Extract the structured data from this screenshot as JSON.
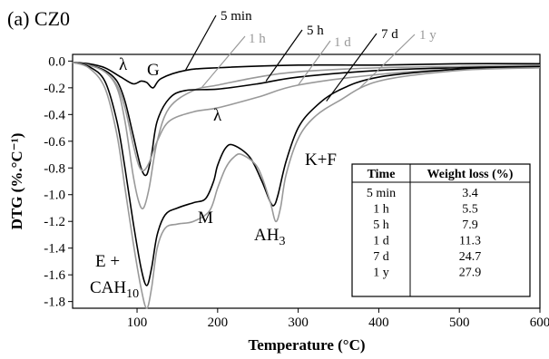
{
  "chart_data": {
    "type": "line",
    "title": "(a) CZ0",
    "xlabel": "Temperature (°C)",
    "ylabel": "DTG (%.°C⁻¹)",
    "xlim": [
      20,
      600
    ],
    "ylim": [
      -1.85,
      0.05
    ],
    "x_ticks": [
      "100",
      "200",
      "300",
      "400",
      "500",
      "600"
    ],
    "y_ticks": [
      "0.0",
      "-0.2",
      "-0.4",
      "-0.6",
      "-0.8",
      "-1.0",
      "-1.2",
      "-1.4",
      "-1.6",
      "-1.8"
    ],
    "grid": false,
    "series": [
      {
        "name": "5 min",
        "color": "#000000",
        "x": [
          20,
          40,
          60,
          80,
          95,
          105,
          112,
          120,
          130,
          160,
          200,
          300,
          400,
          500,
          600
        ],
        "y": [
          -0.01,
          -0.02,
          -0.05,
          -0.12,
          -0.17,
          -0.15,
          -0.16,
          -0.2,
          -0.13,
          -0.07,
          -0.05,
          -0.03,
          -0.03,
          -0.02,
          -0.02
        ]
      },
      {
        "name": "1 h",
        "color": "#999999",
        "x": [
          20,
          40,
          60,
          75,
          85,
          95,
          102,
          108,
          115,
          125,
          140,
          170,
          200,
          250,
          300,
          400,
          500,
          600
        ],
        "y": [
          -0.01,
          -0.03,
          -0.08,
          -0.2,
          -0.45,
          -0.85,
          -1.05,
          -1.1,
          -0.95,
          -0.6,
          -0.35,
          -0.22,
          -0.18,
          -0.12,
          -0.08,
          -0.05,
          -0.04,
          -0.03
        ]
      },
      {
        "name": "5 h",
        "color": "#000000",
        "x": [
          20,
          40,
          60,
          75,
          85,
          95,
          105,
          112,
          118,
          125,
          140,
          160,
          200,
          250,
          300,
          400,
          500,
          600
        ],
        "y": [
          -0.01,
          -0.03,
          -0.07,
          -0.15,
          -0.3,
          -0.55,
          -0.8,
          -0.85,
          -0.7,
          -0.45,
          -0.28,
          -0.22,
          -0.21,
          -0.17,
          -0.12,
          -0.07,
          -0.05,
          -0.04
        ]
      },
      {
        "name": "1 d",
        "color": "#999999",
        "x": [
          20,
          40,
          60,
          75,
          85,
          95,
          102,
          108,
          115,
          125,
          140,
          170,
          200,
          250,
          300,
          400,
          500,
          600
        ],
        "y": [
          -0.01,
          -0.03,
          -0.08,
          -0.18,
          -0.35,
          -0.62,
          -0.78,
          -0.82,
          -0.76,
          -0.6,
          -0.45,
          -0.38,
          -0.35,
          -0.27,
          -0.18,
          -0.1,
          -0.06,
          -0.05
        ]
      },
      {
        "name": "7 d",
        "color": "#000000",
        "x": [
          20,
          40,
          60,
          75,
          85,
          95,
          105,
          112,
          118,
          125,
          135,
          150,
          170,
          185,
          195,
          200,
          210,
          220,
          240,
          255,
          265,
          270,
          275,
          285,
          300,
          320,
          350,
          400,
          500,
          600
        ],
        "y": [
          -0.01,
          -0.04,
          -0.15,
          -0.45,
          -0.8,
          -1.2,
          -1.55,
          -1.68,
          -1.55,
          -1.3,
          -1.15,
          -1.1,
          -1.06,
          -1.03,
          -0.9,
          -0.78,
          -0.65,
          -0.63,
          -0.72,
          -0.9,
          -1.05,
          -1.08,
          -1.0,
          -0.75,
          -0.5,
          -0.35,
          -0.22,
          -0.12,
          -0.06,
          -0.04
        ]
      },
      {
        "name": "1 y",
        "color": "#999999",
        "x": [
          20,
          40,
          60,
          75,
          85,
          95,
          105,
          112,
          118,
          125,
          135,
          150,
          170,
          190,
          200,
          210,
          220,
          230,
          250,
          265,
          272,
          278,
          285,
          300,
          320,
          350,
          400,
          500,
          600
        ],
        "y": [
          -0.01,
          -0.05,
          -0.2,
          -0.55,
          -0.95,
          -1.35,
          -1.7,
          -1.85,
          -1.7,
          -1.4,
          -1.25,
          -1.22,
          -1.2,
          -1.12,
          -0.95,
          -0.8,
          -0.72,
          -0.7,
          -0.8,
          -1.05,
          -1.2,
          -1.1,
          -0.85,
          -0.58,
          -0.42,
          -0.3,
          -0.15,
          -0.07,
          -0.05
        ]
      }
    ],
    "annotations": {
      "lambda_1": "λ",
      "G": "G",
      "lambda_2": "λ",
      "M": "M",
      "AH3_base": "AH",
      "AH3_sub": "3",
      "KF": "K+F",
      "E_plus": "E +",
      "CAH10_base": "CAH",
      "CAH10_sub": "10"
    },
    "callouts": [
      "5 min",
      "1 h",
      "5 h",
      "1 d",
      "7 d",
      "1 y"
    ],
    "table": {
      "headers": [
        "Time",
        "Weight loss (%)"
      ],
      "rows": [
        [
          "5 min",
          "3.4"
        ],
        [
          "1 h",
          "5.5"
        ],
        [
          "5 h",
          "7.9"
        ],
        [
          "1 d",
          "11.3"
        ],
        [
          "7 d",
          "24.7"
        ],
        [
          "1 y",
          "27.9"
        ]
      ]
    }
  }
}
